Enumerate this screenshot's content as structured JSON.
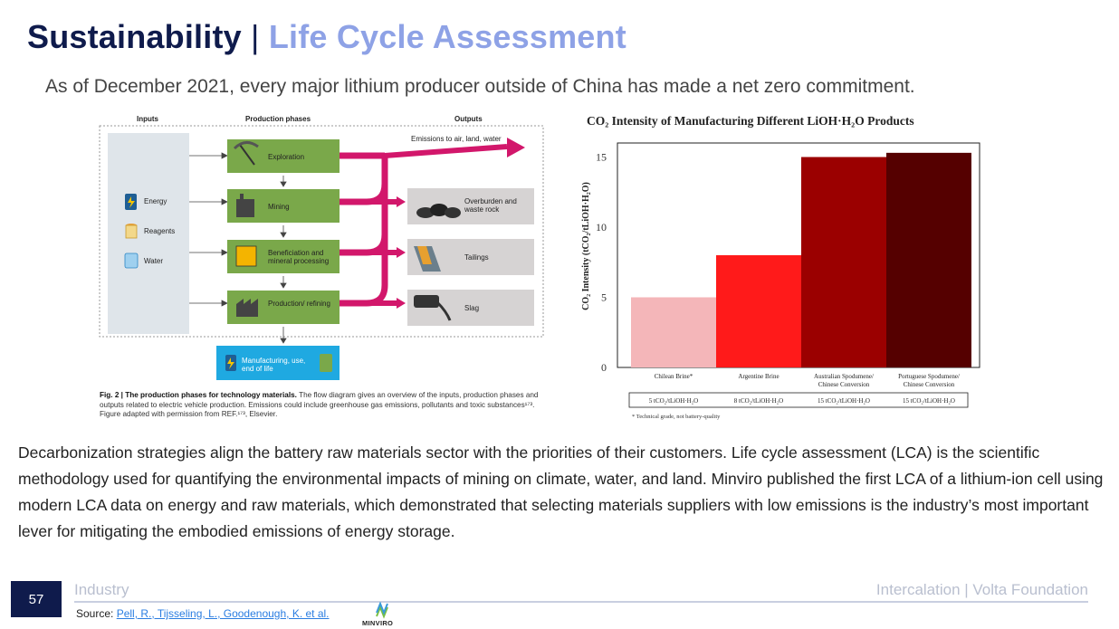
{
  "header": {
    "title_main": "Sustainability",
    "title_sep": " | ",
    "title_sub": "Life Cycle Assessment",
    "subtitle": "As of December 2021, every major lithium producer outside of China has made a net zero commitment."
  },
  "figure": {
    "headers": {
      "inputs": "Inputs",
      "phases": "Production phases",
      "outputs": "Outputs"
    },
    "inputs": [
      "Energy",
      "Reagents",
      "Water"
    ],
    "phases": [
      "Exploration",
      "Mining",
      "Beneficiation and mineral processing",
      "Production/ refining"
    ],
    "emissions_label": "Emissions to air, land, water",
    "outputs": [
      "Overburden and waste rock",
      "Tailings",
      "Slag"
    ],
    "end_label": "Manufacturing, use, end of life",
    "caption_bold": "Fig. 2 | The production phases for technology materials.",
    "caption_rest": " The flow diagram gives an overview of the inputs, production phases and outputs related to electric vehicle production. Emissions could include greenhouse gas emissions, pollutants and toxic substances¹⁷³. Figure adapted with permission from REF.¹⁷³, Elsevier.",
    "colors": {
      "phase_green": "#7aa84a",
      "arrow_magenta": "#d2176b",
      "inputs_panel": "#dfe5ea",
      "outputs_panel": "#d6d3d3",
      "end_blue": "#1fa9e1"
    }
  },
  "chart_data": {
    "type": "bar",
    "title": "CO₂ Intensity of Manufacturing Different LiOH·H₂O Products",
    "ylabel": "CO₂ Intensity (tCO₂/tLiOH·H₂O)",
    "xlabel": "",
    "ylim": [
      0,
      16
    ],
    "yticks": [
      0,
      5,
      10,
      15
    ],
    "grid": false,
    "categories": [
      "Chilean Brine*",
      "Argentine Brine",
      "Australian Spodumene/ Chinese Conversion",
      "Portuguese Spodumene/ Chinese Conversion"
    ],
    "values": [
      5,
      8,
      15,
      15.3
    ],
    "bar_colors": [
      "#f4b6b9",
      "#ff1a1a",
      "#9b0000",
      "#550000"
    ],
    "table_labels": [
      "5 tCO₂/tLiOH·H₂O",
      "8 tCO₂/tLiOH·H₂O",
      "15 tCO₂/tLiOH·H₂O",
      "15 tCO₂/tLiOH·H₂O"
    ],
    "footnote": "* Technical grade, not battery-quality"
  },
  "body": {
    "paragraph": "Decarbonization strategies align the battery raw materials sector with the priorities of their customers. Life cycle assessment (LCA) is the scientific methodology used for quantifying the environmental impacts of mining on climate, water, and land. Minviro published the first LCA of a lithium-ion cell using modern LCA data on energy and raw materials, which demonstrated that selecting materials suppliers with low emissions is the industry’s most important lever for mitigating the embodied emissions of energy storage."
  },
  "footer": {
    "page_number": "57",
    "section": "Industry",
    "org": "Intercalation | Volta Foundation",
    "source_prefix": "Source: ",
    "source_link": "Pell, R., Tijsseling, L., Goodenough, K. et al.",
    "logo_text": "MINVIRO"
  }
}
